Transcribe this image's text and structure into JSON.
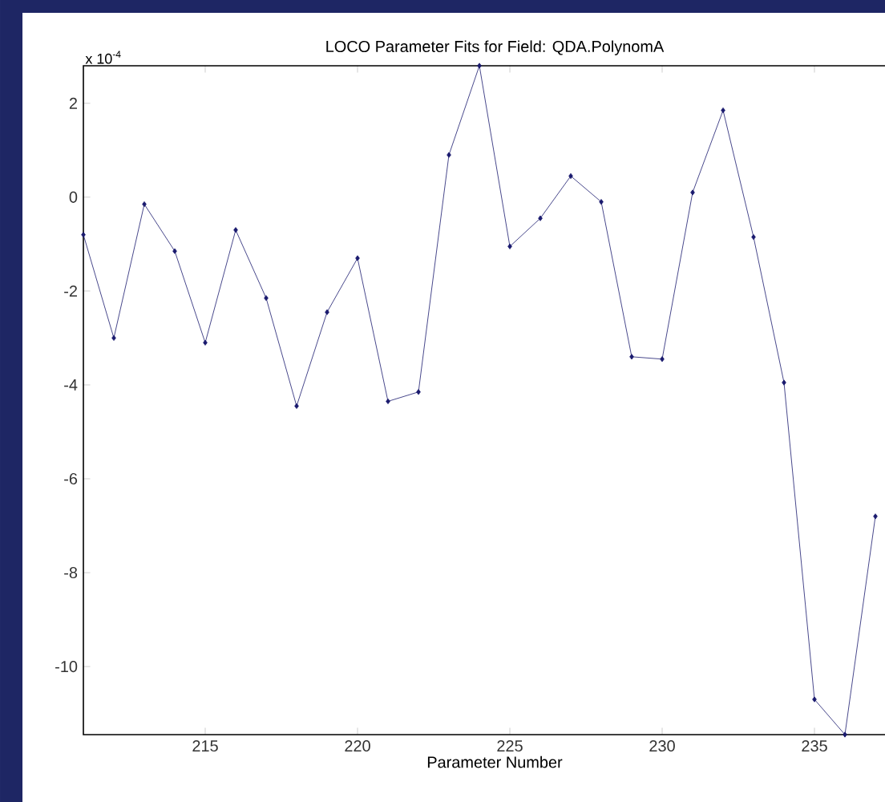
{
  "chart_data": {
    "type": "line",
    "title": "LOCO Parameter Fits for Field: QDA.PolynomA",
    "xlabel": "Parameter Number",
    "annotations": [
      "x 10$^{-4}$"
    ],
    "x": [
      211,
      212,
      213,
      214,
      215,
      216,
      217,
      218,
      219,
      220,
      221,
      222,
      223,
      224,
      225,
      226,
      227,
      228,
      229,
      230,
      231,
      232,
      233,
      234,
      235,
      236,
      237
    ],
    "series": [
      {
        "color": "#1a1a6e",
        "values": [
          -0.8,
          -3.0,
          -0.15,
          -1.15,
          -3.1,
          -0.7,
          -2.15,
          -4.45,
          -2.45,
          -1.3,
          -4.35,
          -4.15,
          0.9,
          2.8,
          -1.05,
          -0.45,
          0.45,
          -0.1,
          -3.4,
          -3.45,
          0.1,
          1.85,
          -0.85,
          -3.95,
          -10.7,
          -11.45,
          -6.8
        ]
      }
    ],
    "xlim": [
      211,
      238
    ],
    "ylim": [
      -11.45,
      2.8
    ],
    "xticks": [
      215,
      220,
      225,
      230,
      235
    ],
    "yticks": [
      -10,
      -8,
      -6,
      -4,
      -2,
      0,
      2
    ],
    "marker": "diamond",
    "line_style": "solid",
    "grid": false
  }
}
